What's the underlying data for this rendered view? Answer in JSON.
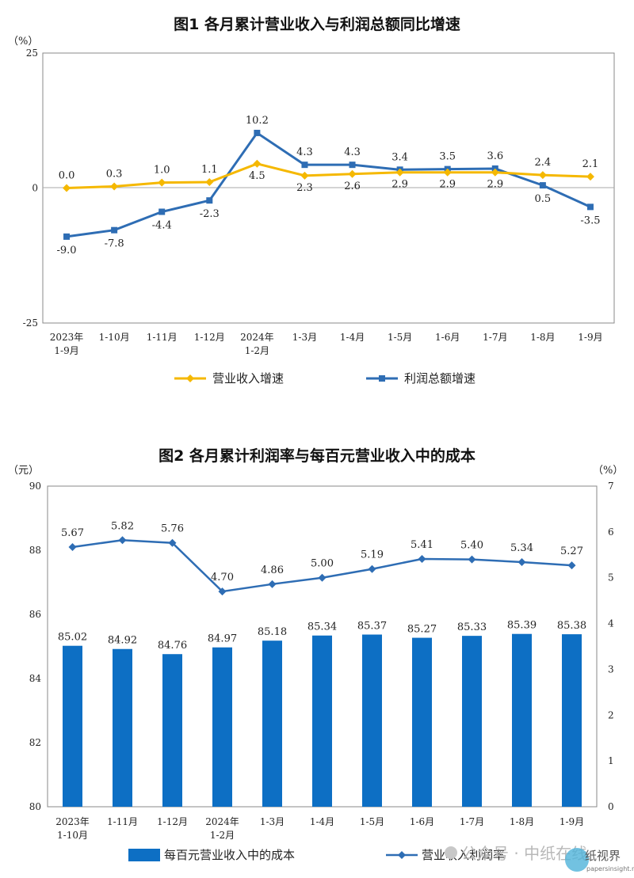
{
  "chart_data": [
    {
      "type": "line",
      "title": "图1  各月累计营业收入与利润总额同比增速",
      "unit": "（%）",
      "categories": [
        [
          "2023年",
          "1-9月"
        ],
        [
          "1-10月"
        ],
        [
          "1-11月"
        ],
        [
          "1-12月"
        ],
        [
          "2024年",
          "1-2月"
        ],
        [
          "1-3月"
        ],
        [
          "1-4月"
        ],
        [
          "1-5月"
        ],
        [
          "1-6月"
        ],
        [
          "1-7月"
        ],
        [
          "1-8月"
        ],
        [
          "1-9月"
        ]
      ],
      "ylim": [
        -25,
        25
      ],
      "yticks": [
        "25",
        "0",
        "-25"
      ],
      "legend_position": "bottom",
      "series": [
        {
          "name": "营业收入增速",
          "color": "#f5b800",
          "marker": "diamond",
          "values": [
            0.0,
            0.3,
            1.0,
            1.1,
            4.5,
            2.3,
            2.6,
            2.9,
            2.9,
            2.9,
            2.4,
            2.1
          ],
          "labels": [
            "0.0",
            "0.3",
            "1.0",
            "1.1",
            "4.5",
            "2.3",
            "2.6",
            "2.9",
            "2.9",
            "2.9",
            "2.4",
            "2.1"
          ]
        },
        {
          "name": "利润总额增速",
          "color": "#2e6db4",
          "marker": "square",
          "values": [
            -9.0,
            -7.8,
            -4.4,
            -2.3,
            10.2,
            4.3,
            4.3,
            3.4,
            3.5,
            3.6,
            0.5,
            -3.5
          ],
          "labels": [
            "-9.0",
            "-7.8",
            "-4.4",
            "-2.3",
            "10.2",
            "4.3",
            "4.3",
            "3.4",
            "3.5",
            "3.6",
            "0.5",
            "-3.5"
          ]
        }
      ]
    },
    {
      "type": "bar",
      "title": "图2  各月累计利润率与每百元营业收入中的成本",
      "y_left_unit": "（元）",
      "y_right_unit": "（%）",
      "categories": [
        [
          "2023年",
          "1-10月"
        ],
        [
          "1-11月"
        ],
        [
          "1-12月"
        ],
        [
          "2024年",
          "1-2月"
        ],
        [
          "1-3月"
        ],
        [
          "1-4月"
        ],
        [
          "1-5月"
        ],
        [
          "1-6月"
        ],
        [
          "1-7月"
        ],
        [
          "1-8月"
        ],
        [
          "1-9月"
        ]
      ],
      "ylim_left": [
        80,
        90
      ],
      "yticks_left": [
        "90",
        "88",
        "86",
        "84",
        "82",
        "80"
      ],
      "ylim_right": [
        0,
        7
      ],
      "yticks_right": [
        "7",
        "6",
        "5",
        "4",
        "3",
        "2",
        "1",
        "0"
      ],
      "legend_position": "bottom",
      "series": [
        {
          "name": "每百元营业收入中的成本",
          "type": "bar",
          "axis": "left",
          "color": "#0d6fc4",
          "values": [
            85.02,
            84.92,
            84.76,
            84.97,
            85.18,
            85.34,
            85.37,
            85.27,
            85.33,
            85.39,
            85.38
          ],
          "labels": [
            "85.02",
            "84.92",
            "84.76",
            "84.97",
            "85.18",
            "85.34",
            "85.37",
            "85.27",
            "85.33",
            "85.39",
            "85.38"
          ]
        },
        {
          "name": "营业收入利润率",
          "type": "line",
          "axis": "right",
          "color": "#2e6db4",
          "marker": "diamond",
          "values": [
            5.67,
            5.82,
            5.76,
            4.7,
            4.86,
            5.0,
            5.19,
            5.41,
            5.4,
            5.34,
            5.27
          ],
          "labels": [
            "5.67",
            "5.82",
            "5.76",
            "4.70",
            "4.86",
            "5.00",
            "5.19",
            "5.41",
            "5.40",
            "5.34",
            "5.27"
          ]
        }
      ]
    }
  ],
  "watermark": {
    "text": "公众号 · 中纸在线",
    "logo_text": "纸视界",
    "logo_url": "papersinsight.net"
  }
}
